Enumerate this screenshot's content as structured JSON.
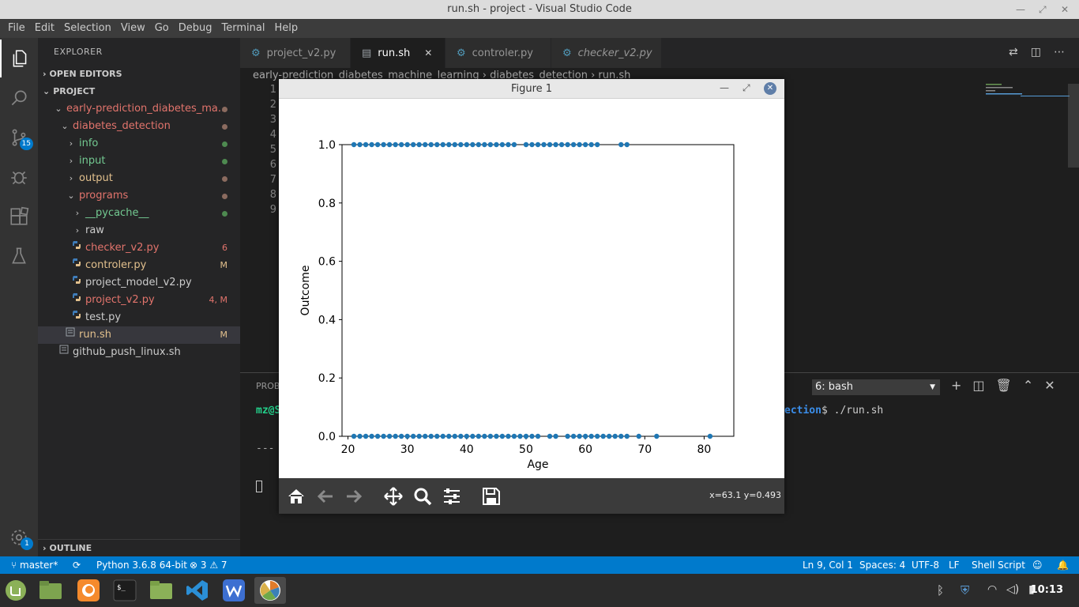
{
  "window": {
    "title": "run.sh - project - Visual Studio Code"
  },
  "menu": [
    "File",
    "Edit",
    "Selection",
    "View",
    "Go",
    "Debug",
    "Terminal",
    "Help"
  ],
  "activity": {
    "scm_badge": "15",
    "settings_badge": "1"
  },
  "sidebar": {
    "title": "EXPLORER",
    "open_editors": "OPEN EDITORS",
    "project": "PROJECT",
    "outline": "OUTLINE",
    "tree": [
      {
        "label": "early-prediction_diabetes_ma...",
        "color": "#e2746c",
        "indent": 0,
        "chev": "open",
        "dot": "#8b6b5f"
      },
      {
        "label": "diabetes_detection",
        "color": "#e2746c",
        "indent": 1,
        "chev": "open",
        "dot": "#8b6b5f"
      },
      {
        "label": "info",
        "color": "#73c991",
        "indent": 2,
        "chev": "closed",
        "dot": "#4e8a50"
      },
      {
        "label": "input",
        "color": "#73c991",
        "indent": 2,
        "chev": "closed",
        "dot": "#4e8a50"
      },
      {
        "label": "output",
        "color": "#e2c08d",
        "indent": 2,
        "chev": "closed",
        "dot": "#8b6b5f"
      },
      {
        "label": "programs",
        "color": "#e2746c",
        "indent": 2,
        "chev": "open",
        "dot": "#8b6b5f"
      },
      {
        "label": "__pycache__",
        "color": "#73c991",
        "indent": 3,
        "chev": "closed",
        "dot": "#4e8a50"
      },
      {
        "label": "raw",
        "color": "#cccccc",
        "indent": 3,
        "chev": "closed",
        "dot": ""
      },
      {
        "label": "checker_v2.py",
        "color": "#e2746c",
        "indent": 3,
        "chev": "file",
        "deco": "6",
        "deco_color": "#e2746c"
      },
      {
        "label": "controler.py",
        "color": "#e2c08d",
        "indent": 3,
        "chev": "file",
        "deco": "M",
        "deco_color": "#e2c08d"
      },
      {
        "label": "project_model_v2.py",
        "color": "#cccccc",
        "indent": 3,
        "chev": "file",
        "deco": ""
      },
      {
        "label": "project_v2.py",
        "color": "#e2746c",
        "indent": 3,
        "chev": "file",
        "deco": "4, M",
        "deco_color": "#e2746c"
      },
      {
        "label": "test.py",
        "color": "#cccccc",
        "indent": 3,
        "chev": "file",
        "deco": ""
      },
      {
        "label": "run.sh",
        "color": "#e2c08d",
        "indent": 2,
        "chev": "shell",
        "deco": "M",
        "deco_color": "#e2c08d",
        "selected": true
      },
      {
        "label": "github_push_linux.sh",
        "color": "#cccccc",
        "indent": 1,
        "chev": "shell",
        "deco": ""
      }
    ]
  },
  "tabs": [
    {
      "label": "project_v2.py",
      "active": false,
      "italic": false
    },
    {
      "label": "run.sh",
      "active": true,
      "italic": false
    },
    {
      "label": "controler.py",
      "active": false,
      "italic": false
    },
    {
      "label": "checker_v2.py",
      "active": false,
      "italic": true
    }
  ],
  "breadcrumbs": "early-prediction_diabetes_machine_learning  ›  diabetes_detection  ›  run.sh",
  "line_numbers": [
    "1",
    "2",
    "3",
    "4",
    "5",
    "6",
    "7",
    "8",
    "9"
  ],
  "panel": {
    "tab_label": "PROB",
    "terminal_select": "6: bash",
    "prompt_user": "mz@S",
    "prompt_path_tail": "ection",
    "command": "$ ./run.sh",
    "dashes": "---"
  },
  "status": {
    "branch": "master*",
    "python": "Python 3.6.8 64-bit",
    "problems": "⊗ 3 ⚠ 7",
    "position": "Ln 9, Col 1",
    "spaces": "Spaces: 4",
    "encoding": "UTF-8",
    "eol": "LF",
    "language": "Shell Script"
  },
  "taskbar": {
    "clock": "10:13"
  },
  "figure": {
    "title": "Figure 1",
    "coords": "x=63.1 y=0.493"
  },
  "chart_data": {
    "type": "scatter",
    "title": "",
    "xlabel": "Age",
    "ylabel": "Outcome",
    "xlim": [
      19,
      85
    ],
    "ylim": [
      0,
      1
    ],
    "xticks": [
      20,
      30,
      40,
      50,
      60,
      70,
      80
    ],
    "yticks": [
      0.0,
      0.2,
      0.4,
      0.6,
      0.8,
      1.0
    ],
    "ytick_labels": [
      "0.0",
      "0.2",
      "0.4",
      "0.6",
      "0.8",
      "1.0"
    ],
    "point_color": "#1f77b4",
    "series": [
      {
        "y": 1,
        "x": [
          21,
          22,
          23,
          24,
          25,
          26,
          27,
          28,
          29,
          30,
          31,
          32,
          33,
          34,
          35,
          36,
          37,
          38,
          39,
          40,
          41,
          42,
          43,
          44,
          45,
          46,
          47,
          48,
          50,
          51,
          52,
          53,
          54,
          55,
          56,
          57,
          58,
          59,
          60,
          61,
          62,
          66,
          67
        ]
      },
      {
        "y": 0,
        "x": [
          21,
          22,
          23,
          24,
          25,
          26,
          27,
          28,
          29,
          30,
          31,
          32,
          33,
          34,
          35,
          36,
          37,
          38,
          39,
          40,
          41,
          42,
          43,
          44,
          45,
          46,
          47,
          48,
          49,
          50,
          51,
          52,
          54,
          55,
          57,
          58,
          59,
          60,
          61,
          62,
          63,
          64,
          65,
          66,
          67,
          69,
          72,
          81
        ]
      }
    ]
  }
}
